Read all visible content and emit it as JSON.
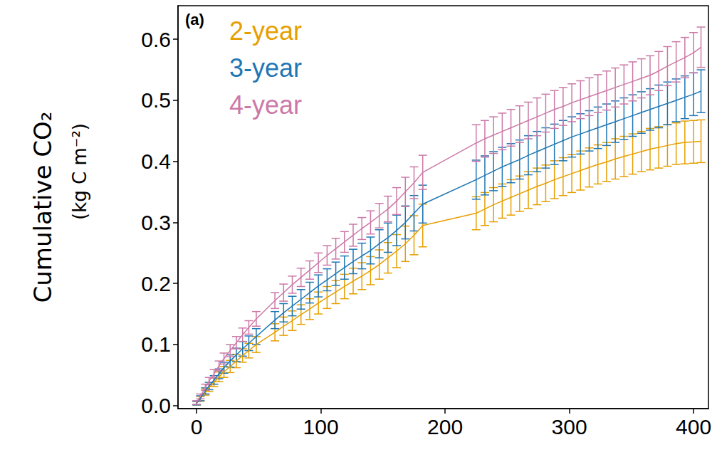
{
  "chart_data": {
    "type": "line",
    "panel_label": "(a)",
    "ylabel": "Cumulative CO₂",
    "ylabel_sub": "(kg C m⁻²)",
    "legend": "upper left",
    "grid": false,
    "xlim": [
      -15,
      412
    ],
    "xticks": [
      0,
      100,
      200,
      300,
      400
    ],
    "ylim": [
      -0.005,
      0.655
    ],
    "yticks": [
      {
        "value": 0,
        "label": "0.0"
      },
      {
        "value": 0.1,
        "label": "0.1"
      },
      {
        "value": 0.2,
        "label": "0.2"
      },
      {
        "value": 0.3,
        "label": "0.3"
      },
      {
        "value": 0.4,
        "label": "0.4"
      },
      {
        "value": 0.5,
        "label": "0.5"
      },
      {
        "value": 0.6,
        "label": "0.6"
      }
    ],
    "x": [
      0,
      3,
      7,
      10,
      14,
      18,
      22,
      27,
      32,
      37,
      42,
      48,
      63,
      70,
      77,
      84,
      91,
      98,
      105,
      112,
      119,
      126,
      133,
      140,
      147,
      154,
      161,
      168,
      175,
      182,
      225,
      232,
      239,
      246,
      253,
      260,
      267,
      274,
      281,
      288,
      295,
      302,
      309,
      316,
      323,
      330,
      337,
      344,
      351,
      358,
      365,
      372,
      379,
      386,
      393,
      400,
      406
    ],
    "series": [
      {
        "name": "2-year",
        "color": "#E69F00",
        "values": [
          0.004,
          0.011,
          0.022,
          0.029,
          0.038,
          0.047,
          0.055,
          0.064,
          0.073,
          0.082,
          0.09,
          0.1,
          0.12,
          0.13,
          0.139,
          0.149,
          0.158,
          0.168,
          0.177,
          0.186,
          0.195,
          0.204,
          0.212,
          0.221,
          0.231,
          0.242,
          0.253,
          0.265,
          0.279,
          0.295,
          0.315,
          0.322,
          0.329,
          0.335,
          0.341,
          0.347,
          0.353,
          0.359,
          0.364,
          0.37,
          0.375,
          0.38,
          0.385,
          0.39,
          0.395,
          0.399,
          0.404,
          0.408,
          0.412,
          0.416,
          0.42,
          0.423,
          0.426,
          0.429,
          0.431,
          0.432,
          0.433
        ],
        "errors": [
          0.003,
          0.004,
          0.005,
          0.006,
          0.007,
          0.008,
          0.009,
          0.01,
          0.011,
          0.011,
          0.012,
          0.013,
          0.014,
          0.015,
          0.016,
          0.016,
          0.017,
          0.018,
          0.018,
          0.019,
          0.02,
          0.021,
          0.022,
          0.023,
          0.024,
          0.025,
          0.027,
          0.029,
          0.032,
          0.035,
          0.027,
          0.027,
          0.028,
          0.028,
          0.029,
          0.029,
          0.03,
          0.03,
          0.03,
          0.031,
          0.031,
          0.031,
          0.032,
          0.032,
          0.032,
          0.032,
          0.033,
          0.033,
          0.033,
          0.033,
          0.034,
          0.034,
          0.034,
          0.034,
          0.035,
          0.035,
          0.035
        ]
      },
      {
        "name": "3-year",
        "color": "#1F77B4",
        "values": [
          0.004,
          0.012,
          0.024,
          0.032,
          0.042,
          0.052,
          0.062,
          0.073,
          0.083,
          0.093,
          0.102,
          0.113,
          0.14,
          0.152,
          0.163,
          0.174,
          0.185,
          0.196,
          0.206,
          0.216,
          0.226,
          0.236,
          0.245,
          0.254,
          0.265,
          0.275,
          0.287,
          0.3,
          0.315,
          0.33,
          0.37,
          0.377,
          0.384,
          0.391,
          0.397,
          0.403,
          0.41,
          0.416,
          0.422,
          0.428,
          0.434,
          0.44,
          0.445,
          0.45,
          0.455,
          0.46,
          0.465,
          0.47,
          0.475,
          0.48,
          0.485,
          0.49,
          0.495,
          0.5,
          0.505,
          0.51,
          0.515
        ],
        "errors": [
          0.003,
          0.004,
          0.005,
          0.006,
          0.007,
          0.008,
          0.009,
          0.01,
          0.011,
          0.012,
          0.012,
          0.013,
          0.014,
          0.015,
          0.016,
          0.016,
          0.017,
          0.018,
          0.018,
          0.019,
          0.019,
          0.02,
          0.021,
          0.022,
          0.023,
          0.024,
          0.025,
          0.027,
          0.029,
          0.031,
          0.032,
          0.032,
          0.032,
          0.032,
          0.032,
          0.032,
          0.032,
          0.033,
          0.033,
          0.033,
          0.033,
          0.033,
          0.033,
          0.033,
          0.034,
          0.034,
          0.034,
          0.034,
          0.034,
          0.034,
          0.034,
          0.035,
          0.035,
          0.035,
          0.035,
          0.035,
          0.035
        ]
      },
      {
        "name": "4-year",
        "color": "#CC79A7",
        "values": [
          0.005,
          0.015,
          0.03,
          0.04,
          0.052,
          0.065,
          0.077,
          0.09,
          0.103,
          0.116,
          0.128,
          0.142,
          0.172,
          0.185,
          0.198,
          0.21,
          0.222,
          0.234,
          0.246,
          0.257,
          0.268,
          0.279,
          0.29,
          0.3,
          0.311,
          0.322,
          0.335,
          0.35,
          0.365,
          0.382,
          0.43,
          0.437,
          0.443,
          0.449,
          0.455,
          0.461,
          0.467,
          0.473,
          0.479,
          0.485,
          0.49,
          0.496,
          0.501,
          0.506,
          0.511,
          0.516,
          0.521,
          0.526,
          0.531,
          0.536,
          0.541,
          0.548,
          0.556,
          0.563,
          0.57,
          0.578,
          0.587
        ],
        "errors": [
          0.003,
          0.004,
          0.005,
          0.006,
          0.007,
          0.008,
          0.009,
          0.01,
          0.01,
          0.011,
          0.011,
          0.012,
          0.013,
          0.014,
          0.014,
          0.015,
          0.015,
          0.016,
          0.016,
          0.017,
          0.017,
          0.018,
          0.018,
          0.019,
          0.02,
          0.021,
          0.022,
          0.024,
          0.026,
          0.028,
          0.03,
          0.03,
          0.03,
          0.03,
          0.03,
          0.03,
          0.03,
          0.031,
          0.031,
          0.031,
          0.031,
          0.031,
          0.031,
          0.031,
          0.031,
          0.032,
          0.032,
          0.032,
          0.032,
          0.032,
          0.032,
          0.032,
          0.032,
          0.033,
          0.033,
          0.033,
          0.033
        ]
      }
    ]
  }
}
